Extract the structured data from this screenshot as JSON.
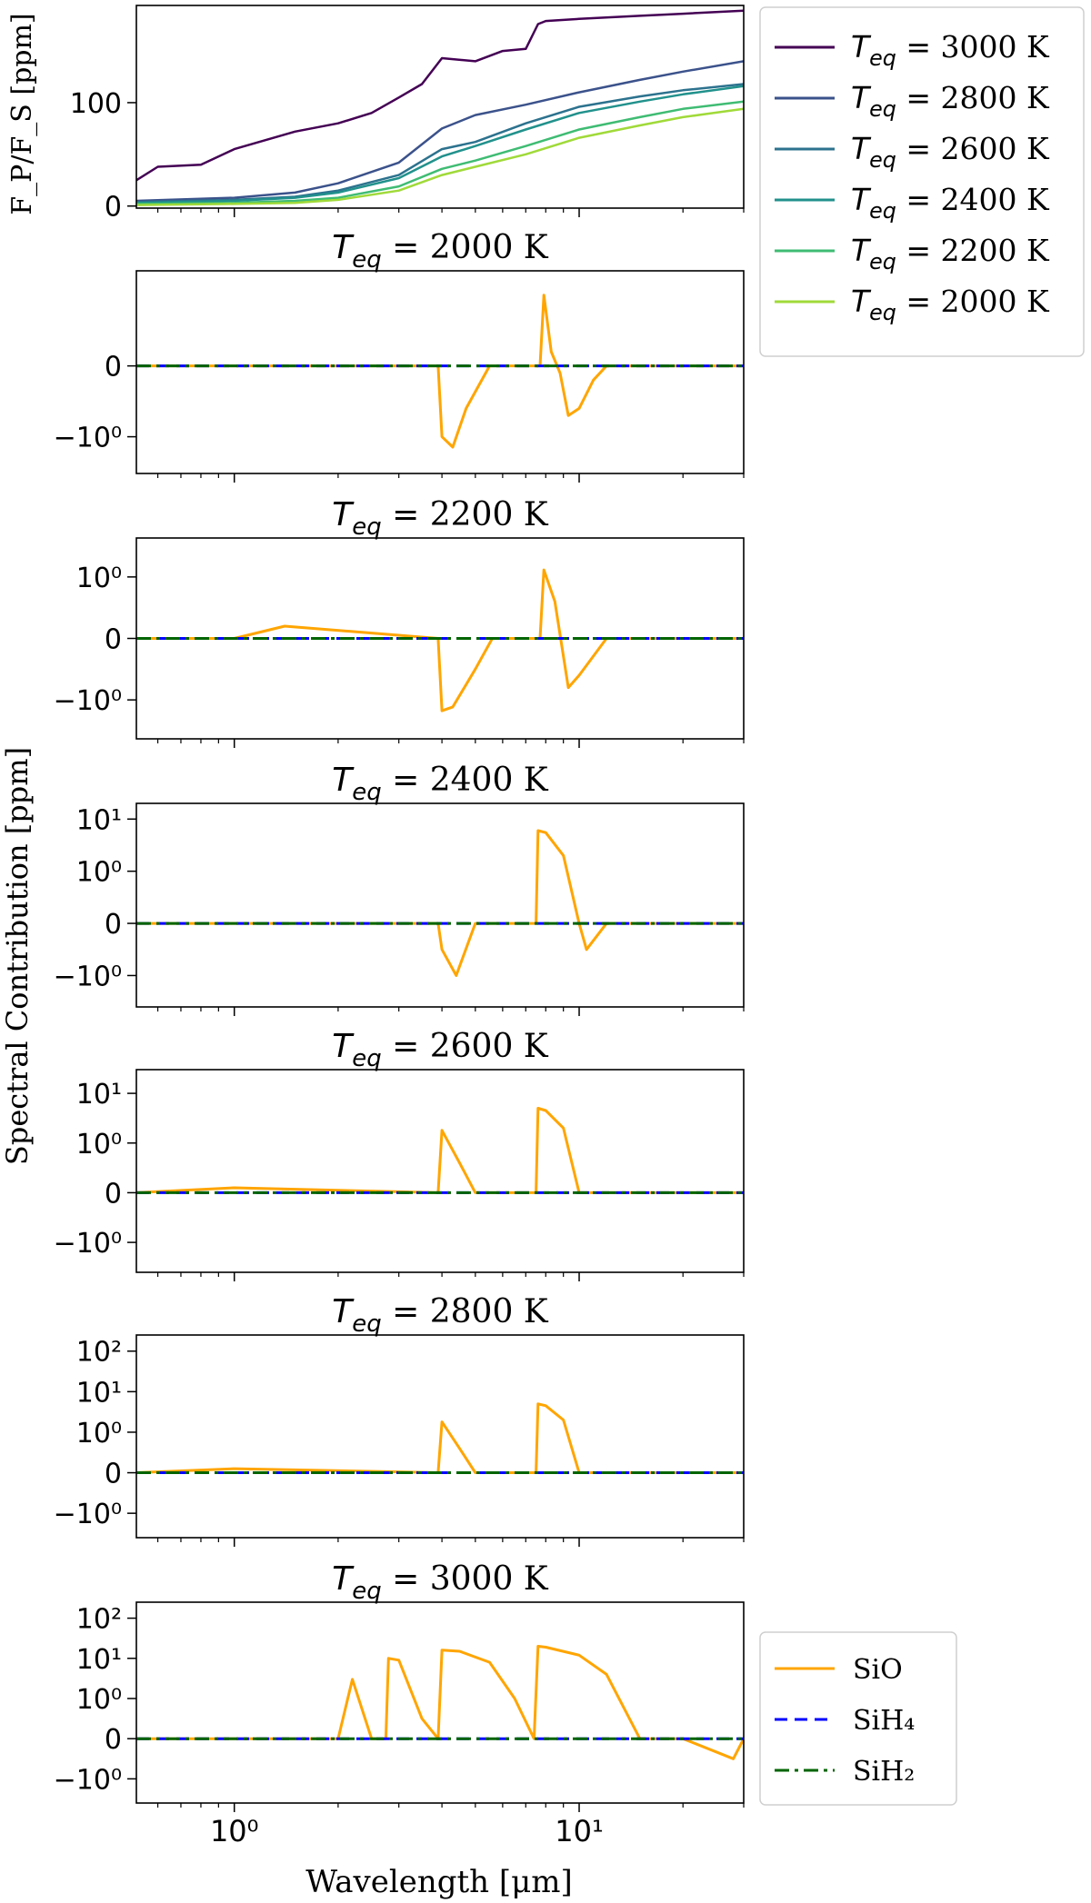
{
  "figure": {
    "xlabel": "Wavelength [μm]",
    "shared_ylabel": "Spectral Contribution [ppm]",
    "xscale": "log",
    "xlim": [
      0.52,
      30
    ],
    "x_ticks": [
      1,
      10
    ],
    "x_tick_labels": [
      "10⁰",
      "10¹"
    ]
  },
  "chart_data": [
    {
      "type": "line",
      "title": "",
      "ylabel": "F_P/F_S [ppm]",
      "xlabel": "",
      "xscale": "log",
      "ylim": [
        -2,
        194
      ],
      "y_ticks": [
        0,
        100
      ],
      "grid": false,
      "legend": "outside-right",
      "series": [
        {
          "name": "T_eq = 3000 K",
          "label_temp": "3000 K",
          "color": "#440154",
          "x": [
            0.52,
            0.6,
            0.8,
            1.0,
            1.5,
            2.0,
            2.5,
            3.0,
            3.5,
            4.0,
            5.0,
            6.0,
            7.0,
            7.6,
            8.0,
            10.0,
            15.0,
            20.0,
            30.0
          ],
          "y": [
            25,
            38,
            40,
            55,
            72,
            80,
            90,
            105,
            118,
            143,
            140,
            150,
            152,
            176,
            179,
            181,
            184,
            186,
            189
          ]
        },
        {
          "name": "T_eq = 2800 K",
          "label_temp": "2800 K",
          "color": "#3b528b",
          "x": [
            0.52,
            1.0,
            1.5,
            2.0,
            3.0,
            4.0,
            5.0,
            7.0,
            10.0,
            15.0,
            20.0,
            30.0
          ],
          "y": [
            5,
            8,
            13,
            22,
            42,
            75,
            88,
            98,
            110,
            122,
            130,
            140
          ]
        },
        {
          "name": "T_eq = 2600 K",
          "label_temp": "2600 K",
          "color": "#2c728e",
          "x": [
            0.52,
            1.0,
            1.5,
            2.0,
            3.0,
            4.0,
            5.0,
            7.0,
            10.0,
            15.0,
            20.0,
            30.0
          ],
          "y": [
            4,
            6,
            9,
            15,
            30,
            55,
            62,
            80,
            96,
            106,
            112,
            118
          ]
        },
        {
          "name": "T_eq = 2400 K",
          "label_temp": "2400 K",
          "color": "#21918c",
          "x": [
            0.52,
            1.0,
            1.5,
            2.0,
            3.0,
            4.0,
            5.0,
            7.0,
            10.0,
            15.0,
            20.0,
            30.0
          ],
          "y": [
            3,
            5,
            8,
            13,
            27,
            48,
            58,
            74,
            90,
            101,
            108,
            116
          ]
        },
        {
          "name": "T_eq = 2200 K",
          "label_temp": "2200 K",
          "color": "#3fbc73",
          "x": [
            0.52,
            1.0,
            1.5,
            2.0,
            3.0,
            4.0,
            5.0,
            7.0,
            10.0,
            15.0,
            20.0,
            30.0
          ],
          "y": [
            2,
            3,
            5,
            8,
            19,
            36,
            44,
            58,
            74,
            86,
            94,
            101
          ]
        },
        {
          "name": "T_eq = 2000 K",
          "label_temp": "2000 K",
          "color": "#a0da39",
          "x": [
            0.52,
            1.0,
            1.5,
            2.0,
            3.0,
            4.0,
            5.0,
            7.0,
            10.0,
            15.0,
            20.0,
            30.0
          ],
          "y": [
            1,
            2,
            3,
            6,
            15,
            30,
            38,
            50,
            66,
            78,
            86,
            94
          ]
        }
      ]
    },
    {
      "type": "line",
      "title": "T_eq = 2000 K",
      "title_temp": "2000 K",
      "yscale": "symlog",
      "ylim": [
        -3.3,
        2.2
      ],
      "y_ticks": [
        0,
        -1
      ],
      "y_tick_labels": [
        "0",
        "−10⁰"
      ],
      "series": [
        {
          "name": "SiO",
          "x": [
            0.52,
            1.5,
            3.9,
            4.0,
            4.3,
            4.7,
            5.5,
            7.7,
            7.9,
            8.3,
            8.8,
            9.3,
            10.0,
            11.0,
            12.0,
            30.0
          ],
          "y": [
            0,
            0,
            0,
            -1.0,
            -1.4,
            -0.6,
            0,
            0,
            1.0,
            0.2,
            -0.1,
            -0.7,
            -0.6,
            -0.2,
            0,
            0
          ]
        },
        {
          "name": "SiH₄",
          "x": [
            0.52,
            30
          ],
          "y": [
            0,
            0
          ]
        },
        {
          "name": "SiH₂",
          "x": [
            0.52,
            30
          ],
          "y": [
            0,
            0
          ]
        }
      ]
    },
    {
      "type": "line",
      "title": "T_eq = 2200 K",
      "title_temp": "2200 K",
      "yscale": "symlog",
      "ylim": [
        -4.3,
        4.3
      ],
      "y_ticks": [
        1,
        0,
        -1
      ],
      "y_tick_labels": [
        "10⁰",
        "0",
        "−10⁰"
      ],
      "series": [
        {
          "name": "SiO",
          "x": [
            0.52,
            1.0,
            1.4,
            3.9,
            4.0,
            4.3,
            5.0,
            5.6,
            7.7,
            7.9,
            8.5,
            9.3,
            10.0,
            12.0,
            30.0
          ],
          "y": [
            0,
            0,
            0.2,
            0,
            -1.5,
            -1.3,
            -0.5,
            0,
            0,
            1.3,
            0.6,
            -0.8,
            -0.6,
            0,
            0
          ]
        },
        {
          "name": "SiH₄",
          "x": [
            0.52,
            30
          ],
          "y": [
            0,
            0
          ]
        },
        {
          "name": "SiH₂",
          "x": [
            0.52,
            30
          ],
          "y": [
            0,
            0
          ]
        }
      ]
    },
    {
      "type": "line",
      "title": "T_eq = 2400 K",
      "title_temp": "2400 K",
      "yscale": "symlog",
      "ylim": [
        -4,
        20
      ],
      "y_ticks": [
        10,
        1,
        0,
        -1
      ],
      "y_tick_labels": [
        "10¹",
        "10⁰",
        "0",
        "−10⁰"
      ],
      "series": [
        {
          "name": "SiO",
          "x": [
            0.52,
            1.0,
            3.9,
            4.0,
            4.4,
            5.0,
            7.5,
            7.6,
            8.0,
            9.0,
            10.0,
            10.5,
            12.0,
            30.0
          ],
          "y": [
            0,
            0,
            0,
            -0.5,
            -1.0,
            0,
            0,
            6.0,
            5.5,
            2.0,
            0,
            -0.5,
            0,
            0
          ]
        },
        {
          "name": "SiH₄",
          "x": [
            0.52,
            30
          ],
          "y": [
            0,
            0
          ]
        },
        {
          "name": "SiH₂",
          "x": [
            0.52,
            30
          ],
          "y": [
            0,
            0
          ]
        }
      ]
    },
    {
      "type": "line",
      "title": "T_eq = 2600 K",
      "title_temp": "2600 K",
      "yscale": "symlog",
      "ylim": [
        -4,
        30
      ],
      "y_ticks": [
        10,
        1,
        0,
        -1
      ],
      "y_tick_labels": [
        "10¹",
        "10⁰",
        "0",
        "−10⁰"
      ],
      "series": [
        {
          "name": "SiO",
          "x": [
            0.52,
            1.0,
            3.9,
            4.0,
            4.5,
            5.0,
            7.5,
            7.6,
            8.0,
            9.0,
            10.0,
            30.0
          ],
          "y": [
            0,
            0.1,
            0,
            1.8,
            0.6,
            0,
            0,
            5.0,
            4.5,
            2.0,
            0,
            0
          ]
        },
        {
          "name": "SiH₄",
          "x": [
            0.52,
            30
          ],
          "y": [
            0,
            0
          ]
        },
        {
          "name": "SiH₂",
          "x": [
            0.52,
            30
          ],
          "y": [
            0,
            0
          ]
        }
      ]
    },
    {
      "type": "line",
      "title": "T_eq = 2800 K",
      "title_temp": "2800 K",
      "yscale": "symlog",
      "ylim": [
        -4,
        250
      ],
      "y_ticks": [
        100,
        10,
        1,
        0,
        -1
      ],
      "y_tick_labels": [
        "10²",
        "10¹",
        "10⁰",
        "0",
        "−10⁰"
      ],
      "series": [
        {
          "name": "SiO",
          "x": [
            0.52,
            1.0,
            3.9,
            4.0,
            4.5,
            5.0,
            7.5,
            7.6,
            8.0,
            9.0,
            10.0,
            30.0
          ],
          "y": [
            0,
            0.1,
            0,
            1.8,
            0.6,
            0,
            0,
            5.0,
            4.5,
            2.0,
            0,
            0
          ]
        },
        {
          "name": "SiH₄",
          "x": [
            0.52,
            30
          ],
          "y": [
            0,
            0
          ]
        },
        {
          "name": "SiH₂",
          "x": [
            0.52,
            30
          ],
          "y": [
            0,
            0
          ]
        }
      ]
    },
    {
      "type": "line",
      "title": "T_eq = 3000 K",
      "title_temp": "3000 K",
      "yscale": "symlog",
      "ylim": [
        -4,
        250
      ],
      "y_ticks": [
        100,
        10,
        1,
        0,
        -1
      ],
      "y_tick_labels": [
        "10²",
        "10¹",
        "10⁰",
        "0",
        "−10⁰"
      ],
      "series": [
        {
          "name": "SiO",
          "x": [
            0.52,
            2.0,
            2.2,
            2.5,
            2.75,
            2.8,
            3.0,
            3.5,
            3.9,
            4.0,
            4.5,
            5.5,
            6.5,
            7.4,
            7.6,
            8.0,
            10.0,
            12.0,
            15.0,
            20.0,
            28.0,
            30.0
          ],
          "y": [
            0,
            0,
            3.0,
            0,
            0,
            10.0,
            9.0,
            0.5,
            0,
            16.0,
            15.0,
            8.0,
            1.0,
            0,
            20.0,
            19.0,
            12.0,
            4.0,
            0,
            0,
            -0.5,
            0
          ]
        },
        {
          "name": "SiH₄",
          "x": [
            0.52,
            30
          ],
          "y": [
            0,
            0
          ]
        },
        {
          "name": "SiH₂",
          "x": [
            0.52,
            30
          ],
          "y": [
            0,
            0
          ]
        }
      ]
    }
  ],
  "legend_species": [
    {
      "name": "SiO",
      "color": "#ffa500"
    },
    {
      "name": "SiH₄",
      "color": "#0000ff"
    },
    {
      "name": "SiH₂",
      "color": "#006400"
    }
  ]
}
